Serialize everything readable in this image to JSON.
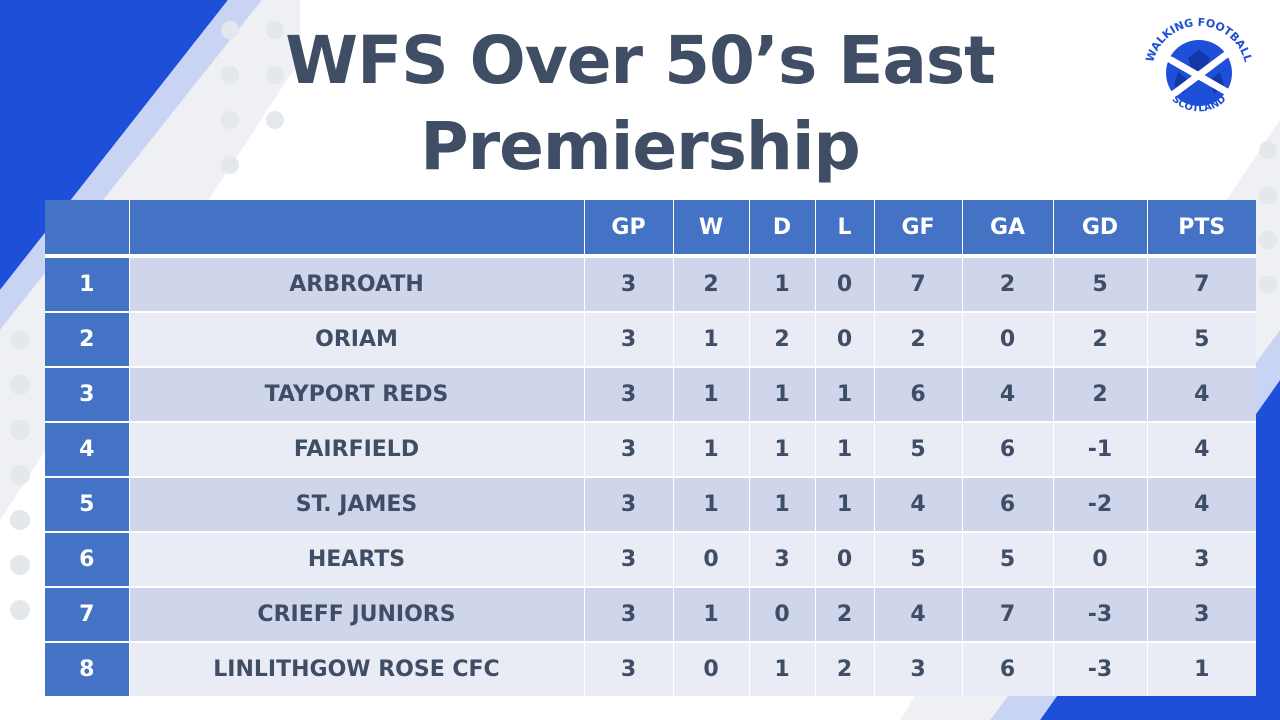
{
  "title": "WFS Over 50’s East Premiership",
  "logo": {
    "top_text": "WALKING FOOTBALL",
    "bottom_text": "SCOTLAND",
    "icon": "football-saltire-icon"
  },
  "colors": {
    "header_blue": "#4472c4",
    "row_dark": "#cfd5ea",
    "row_light": "#e9ebf5",
    "title_text": "#3f4e64",
    "accent_blue": "#1e4fd8"
  },
  "table": {
    "columns": [
      "",
      "",
      "GP",
      "W",
      "D",
      "L",
      "GF",
      "GA",
      "GD",
      "PTS"
    ],
    "rows": [
      {
        "pos": "1",
        "team": "ARBROATH",
        "gp": "3",
        "w": "2",
        "d": "1",
        "l": "0",
        "gf": "7",
        "ga": "2",
        "gd": "5",
        "pts": "7"
      },
      {
        "pos": "2",
        "team": "ORIAM",
        "gp": "3",
        "w": "1",
        "d": "2",
        "l": "0",
        "gf": "2",
        "ga": "0",
        "gd": "2",
        "pts": "5"
      },
      {
        "pos": "3",
        "team": "TAYPORT REDS",
        "gp": "3",
        "w": "1",
        "d": "1",
        "l": "1",
        "gf": "6",
        "ga": "4",
        "gd": "2",
        "pts": "4"
      },
      {
        "pos": "4",
        "team": "FAIRFIELD",
        "gp": "3",
        "w": "1",
        "d": "1",
        "l": "1",
        "gf": "5",
        "ga": "6",
        "gd": "-1",
        "pts": "4"
      },
      {
        "pos": "5",
        "team": "ST. JAMES",
        "gp": "3",
        "w": "1",
        "d": "1",
        "l": "1",
        "gf": "4",
        "ga": "6",
        "gd": "-2",
        "pts": "4"
      },
      {
        "pos": "6",
        "team": "HEARTS",
        "gp": "3",
        "w": "0",
        "d": "3",
        "l": "0",
        "gf": "5",
        "ga": "5",
        "gd": "0",
        "pts": "3"
      },
      {
        "pos": "7",
        "team": "CRIEFF JUNIORS",
        "gp": "3",
        "w": "1",
        "d": "0",
        "l": "2",
        "gf": "4",
        "ga": "7",
        "gd": "-3",
        "pts": "3"
      },
      {
        "pos": "8",
        "team": "LINLITHGOW ROSE CFC",
        "gp": "3",
        "w": "0",
        "d": "1",
        "l": "2",
        "gf": "3",
        "ga": "6",
        "gd": "-3",
        "pts": "1"
      }
    ]
  }
}
